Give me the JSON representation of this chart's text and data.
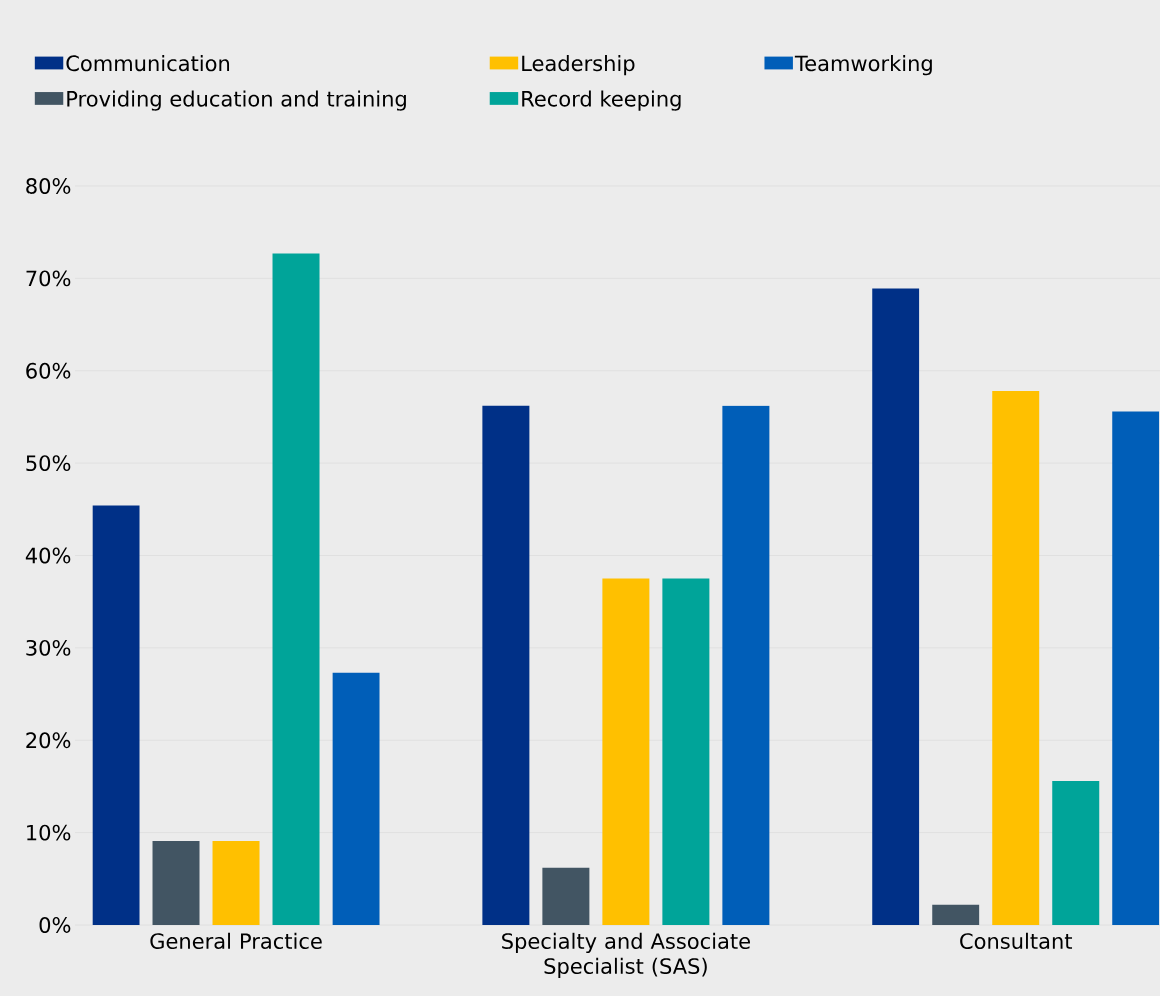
{
  "chart_data": {
    "type": "bar",
    "categories": [
      "General Practice",
      "Specialty and Associate Specialist (SAS)",
      "Consultant"
    ],
    "series": [
      {
        "name": "Communication",
        "color": "#003087",
        "values": [
          45.4,
          56.2,
          68.9
        ]
      },
      {
        "name": "Providing education and training",
        "color": "#425563",
        "values": [
          9.1,
          6.2,
          2.2
        ]
      },
      {
        "name": "Leadership",
        "color": "#ffc000",
        "values": [
          9.1,
          37.5,
          57.8
        ]
      },
      {
        "name": "Record keeping",
        "color": "#00a499",
        "values": [
          72.7,
          37.5,
          15.6
        ]
      },
      {
        "name": "Teamworking",
        "color": "#005eb8",
        "values": [
          27.3,
          56.2,
          55.6
        ]
      }
    ],
    "ylim": [
      0,
      80
    ],
    "yticks": [
      {
        "value": 0,
        "label": "0%"
      },
      {
        "value": 10,
        "label": "10%"
      },
      {
        "value": 20,
        "label": "20%"
      },
      {
        "value": 30,
        "label": "30%"
      },
      {
        "value": 40,
        "label": "40%"
      },
      {
        "value": 50,
        "label": "50%"
      },
      {
        "value": 60,
        "label": "60%"
      },
      {
        "value": 70,
        "label": "70%"
      },
      {
        "value": 80,
        "label": "80%"
      }
    ],
    "grid": "y",
    "legend": "top"
  }
}
